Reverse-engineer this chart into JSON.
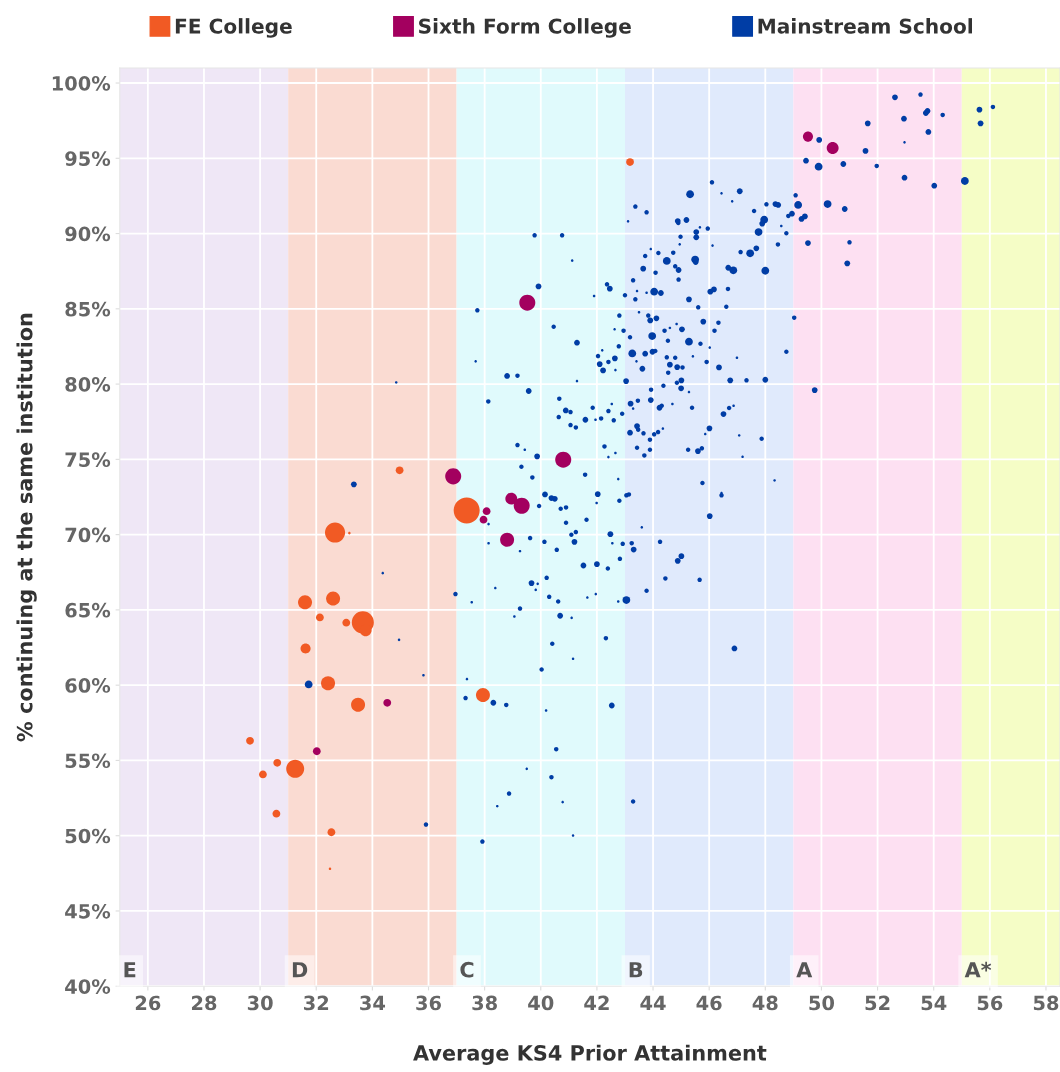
{
  "chart_data": {
    "type": "bubble",
    "xlabel": "Average KS4 Prior Attainment",
    "ylabel": "% continuing at the same institution",
    "xlim": [
      25,
      58.5
    ],
    "xticks": [
      26,
      28,
      30,
      32,
      34,
      36,
      38,
      40,
      42,
      44,
      46,
      48,
      50,
      52,
      54,
      56,
      58
    ],
    "ylim": [
      40,
      101
    ],
    "yticks": [
      {
        "value": 40,
        "label": "40%"
      },
      {
        "value": 45,
        "label": "45%"
      },
      {
        "value": 50,
        "label": "50%"
      },
      {
        "value": 55,
        "label": "55%"
      },
      {
        "value": 60,
        "label": "60%"
      },
      {
        "value": 65,
        "label": "65%"
      },
      {
        "value": 70,
        "label": "70%"
      },
      {
        "value": 75,
        "label": "75%"
      },
      {
        "value": 80,
        "label": "80%"
      },
      {
        "value": 85,
        "label": "85%"
      },
      {
        "value": 90,
        "label": "90%"
      },
      {
        "value": 95,
        "label": "95%"
      },
      {
        "value": 100,
        "label": "100%"
      }
    ],
    "grid": true,
    "legend": "top",
    "marker": "circle",
    "bands": [
      {
        "axis": "x",
        "from": 25,
        "to": 31,
        "label": "E",
        "color": "#efe7f6"
      },
      {
        "axis": "x",
        "from": 31,
        "to": 37,
        "label": "D",
        "color": "#fadbd2"
      },
      {
        "axis": "x",
        "from": 37,
        "to": 43,
        "label": "C",
        "color": "#e0fafc"
      },
      {
        "axis": "x",
        "from": 43,
        "to": 49,
        "label": "B",
        "color": "#e0eafc"
      },
      {
        "axis": "x",
        "from": 49,
        "to": 55,
        "label": "A",
        "color": "#fde0f2"
      },
      {
        "axis": "x",
        "from": 55,
        "to": 58.5,
        "label": "A*",
        "color": "#f5fdc6"
      }
    ],
    "series": [
      {
        "name": "FE College",
        "color": "#f15a24",
        "x": [
          37.36,
          32.67,
          33.18,
          31.6,
          32.6,
          32.13,
          33.07,
          33.66,
          33.76,
          31.62,
          32.42,
          33.49,
          37.94,
          29.64,
          30.61,
          30.1,
          31.25,
          30.58,
          32.54,
          32.49,
          34.97,
          43.18
        ],
        "values": [
          71.6,
          70.14,
          70.1,
          65.5,
          65.75,
          64.5,
          64.15,
          64.17,
          63.64,
          62.44,
          60.13,
          58.7,
          59.34,
          56.3,
          54.84,
          54.07,
          54.44,
          51.46,
          50.23,
          47.8,
          74.27,
          94.75
        ],
        "sizes": [
          1.0,
          0.6,
          0.01,
          0.29,
          0.29,
          0.09,
          0.09,
          0.72,
          0.21,
          0.15,
          0.29,
          0.29,
          0.29,
          0.09,
          0.09,
          0.09,
          0.48,
          0.09,
          0.09,
          0.01,
          0.09,
          0.09
        ]
      },
      {
        "name": "Sixth Form College",
        "color": "#a3005f",
        "x": [
          39.52,
          40.8,
          36.88,
          38.95,
          39.32,
          38.07,
          37.96,
          38.8,
          34.53,
          32.02,
          49.52,
          50.4
        ],
        "values": [
          85.41,
          74.98,
          73.87,
          72.39,
          71.92,
          71.56,
          70.99,
          69.66,
          58.83,
          55.61,
          96.44,
          95.68
        ],
        "sizes": [
          0.38,
          0.38,
          0.38,
          0.21,
          0.38,
          0.09,
          0.09,
          0.29,
          0.09,
          0.09,
          0.15,
          0.21
        ]
      },
      {
        "name": "Mainstream School",
        "color": "#003da5",
        "x": [
          39.78,
          40.76,
          41.12,
          39.92,
          37.74,
          40.46,
          41.29,
          37.68,
          38.8,
          39.17,
          34.85,
          41.29,
          39.57,
          38.13,
          40.66,
          40.89,
          41.06,
          40.64,
          41.59,
          41.06,
          41.25,
          39.17,
          39.43,
          39.87,
          39.31,
          41.58,
          39.7,
          40.15,
          40.38,
          40.5,
          39.94,
          40.71,
          40.9,
          33.34,
          38.14,
          40.9,
          41.63,
          41.09,
          41.25,
          41.2,
          38.14,
          39.62,
          40.13,
          39.26,
          40.57,
          41.52,
          34.37,
          39.67,
          39.89,
          40.21,
          39.82,
          38.38,
          36.96,
          37.54,
          40.3,
          40.62,
          41.66,
          39.26,
          39.06,
          40.69,
          41.1,
          34.95,
          40.41,
          41.15,
          40.03,
          35.82,
          37.37,
          37.32,
          38.31,
          38.77,
          40.19,
          40.55,
          39.5,
          40.38,
          38.87,
          38.45,
          40.78,
          35.91,
          37.92,
          41.15,
          31.73,
          52.62,
          53.53,
          55.63,
          56.11,
          52.94,
          53.72,
          53.78,
          54.32,
          51.65,
          55.67,
          49.92,
          53.81,
          52.96,
          51.57,
          49.45,
          49.9,
          50.78,
          51.97,
          52.96,
          54.02,
          55.11,
          46.1,
          45.32,
          46.44,
          47.09,
          49.08,
          46.82,
          43.37,
          43.77,
          48.04,
          48.36,
          48.46,
          49.17,
          50.22,
          50.83,
          47.6,
          43.11,
          44.88,
          44.9,
          45.19,
          45.67,
          45.95,
          45.54,
          45.54,
          44.98,
          44.95,
          46.12,
          47.96,
          47.89,
          47.76,
          48.57,
          48.75,
          48.82,
          48.95,
          49.29,
          49.41,
          49.52,
          51.0,
          50.92,
          48.45,
          47.68,
          47.46,
          47.12,
          43.92,
          44.19,
          44.72,
          43.72,
          44.49,
          45.5,
          45.52,
          44.79,
          44.91,
          43.65,
          44.09,
          46.68,
          46.86,
          48.0,
          44.91,
          43.29,
          42.36,
          42.46,
          41.9,
          43.0,
          43.43,
          43.37,
          43.77,
          44.04,
          44.28,
          45.28,
          45.61,
          46.04,
          46.17,
          46.67,
          46.61,
          49.03,
          42.8,
          43.83,
          43.9,
          44.12,
          43.5,
          42.63,
          42.95,
          43.18,
          43.97,
          44.41,
          44.6,
          44.84,
          45.03,
          45.79,
          46.33,
          46.19,
          44.53,
          45.28,
          45.69,
          46.02,
          42.78,
          43.26,
          43.72,
          43.98,
          44.08,
          42.64,
          42.04,
          42.19,
          42.1,
          42.22,
          42.41,
          42.66,
          43.41,
          43.62,
          44.49,
          44.6,
          44.79,
          44.86,
          45.05,
          44.54,
          45.42,
          45.91,
          46.35,
          46.99,
          48.75,
          43.04,
          43.93,
          44.37,
          44.85,
          45.01,
          45.0,
          45.28,
          46.75,
          47.33,
          48.0,
          49.76,
          43.92,
          43.46,
          43.2,
          43.29,
          44.23,
          44.31,
          44.69,
          45.39,
          46.51,
          46.71,
          46.87,
          42.9,
          42.53,
          42.41,
          41.85,
          41.95,
          42.15,
          42.6,
          43.18,
          43.43,
          43.47,
          43.66,
          43.89,
          44.04,
          44.18,
          44.35,
          43.43,
          43.89,
          43.69,
          45.25,
          45.6,
          45.74,
          46.01,
          45.86,
          47.07,
          47.19,
          47.87,
          42.27,
          42.41,
          42.66,
          42.76,
          48.33,
          45.76,
          42.03,
          43.05,
          43.14,
          42.8,
          41.99,
          46.44,
          46.44,
          46.02,
          43.6,
          42.48,
          42.55,
          42.92,
          43.24,
          43.31,
          44.25,
          44.88,
          45.01,
          42.82,
          42.0,
          42.39,
          44.44,
          45.66,
          43.77,
          41.96,
          42.76,
          43.05,
          42.32,
          46.9,
          42.53,
          43.29
        ],
        "values": [
          89.88,
          89.88,
          88.2,
          86.49,
          84.9,
          83.81,
          82.75,
          81.51,
          80.54,
          80.56,
          80.11,
          80.2,
          79.54,
          78.85,
          79.03,
          78.25,
          78.14,
          77.81,
          77.63,
          77.28,
          77.12,
          75.95,
          75.64,
          75.2,
          74.51,
          73.98,
          73.8,
          72.67,
          72.43,
          72.38,
          71.9,
          71.72,
          71.81,
          73.34,
          70.7,
          70.79,
          70.99,
          69.99,
          70.17,
          69.52,
          69.43,
          69.77,
          69.52,
          68.9,
          68.99,
          67.95,
          67.44,
          66.78,
          66.73,
          67.13,
          66.33,
          66.45,
          66.05,
          65.51,
          65.87,
          65.56,
          65.82,
          65.09,
          64.56,
          64.61,
          64.47,
          63.01,
          62.75,
          61.75,
          61.04,
          60.66,
          60.4,
          59.14,
          58.83,
          58.69,
          58.32,
          55.75,
          54.44,
          53.89,
          52.8,
          51.96,
          52.23,
          50.74,
          49.61,
          50.01,
          60.05,
          99.05,
          99.23,
          98.23,
          98.41,
          97.63,
          98.01,
          98.14,
          97.88,
          97.32,
          97.32,
          96.22,
          96.75,
          96.06,
          95.49,
          94.84,
          94.44,
          94.62,
          94.49,
          93.71,
          93.18,
          93.49,
          93.4,
          92.61,
          92.67,
          92.81,
          92.54,
          92.14,
          91.79,
          91.41,
          91.94,
          91.96,
          91.9,
          91.9,
          91.96,
          91.63,
          91.5,
          90.81,
          90.83,
          90.7,
          90.9,
          90.41,
          90.33,
          90.1,
          89.75,
          89.79,
          89.28,
          89.2,
          90.92,
          90.66,
          90.1,
          90.5,
          90.02,
          91.17,
          91.32,
          90.97,
          91.14,
          89.37,
          89.42,
          88.02,
          89.28,
          89.02,
          88.69,
          88.77,
          88.97,
          88.71,
          88.73,
          88.51,
          88.18,
          88.27,
          88.11,
          87.82,
          87.58,
          87.67,
          87.4,
          87.73,
          87.56,
          87.53,
          86.94,
          86.89,
          86.63,
          86.34,
          85.85,
          85.9,
          86.18,
          85.63,
          86.07,
          86.14,
          86.05,
          85.63,
          85.1,
          86.14,
          86.29,
          86.32,
          85.14,
          84.41,
          84.55,
          84.55,
          84.23,
          84.37,
          84.77,
          83.64,
          83.55,
          83.11,
          83.19,
          83.55,
          83.73,
          83.99,
          83.64,
          84.15,
          84.08,
          83.55,
          82.88,
          82.82,
          82.68,
          82.42,
          82.51,
          82.04,
          82.02,
          82.15,
          82.2,
          81.71,
          81.86,
          82.24,
          81.33,
          80.91,
          81.47,
          80.93,
          81.51,
          81.02,
          81.78,
          81.29,
          81.75,
          81.13,
          81.11,
          80.76,
          81.84,
          81.47,
          81.11,
          81.75,
          82.15,
          80.2,
          79.63,
          79.89,
          80.09,
          80.25,
          79.72,
          79.47,
          80.25,
          80.25,
          80.29,
          79.6,
          78.94,
          78.9,
          78.7,
          78.37,
          78.43,
          78.56,
          78.68,
          78.43,
          78.01,
          78.41,
          78.56,
          78.03,
          78.68,
          78.21,
          78.43,
          77.63,
          77.72,
          77.59,
          76.77,
          77.21,
          76.97,
          76.73,
          76.31,
          76.66,
          76.81,
          77.04,
          75.77,
          75.64,
          75.26,
          75.64,
          75.55,
          75.73,
          77.06,
          76.68,
          76.59,
          75.17,
          76.37,
          75.86,
          75.15,
          75.42,
          73.69,
          73.6,
          73.43,
          72.69,
          72.61,
          72.67,
          72.25,
          72.1,
          72.76,
          72.61,
          71.23,
          70.48,
          70.03,
          69.43,
          69.39,
          69.43,
          69.01,
          69.52,
          68.26,
          68.57,
          68.39,
          68.04,
          67.75,
          67.09,
          67.0,
          66.27,
          66.05,
          65.56,
          65.65,
          63.12,
          62.44,
          58.65,
          52.27
        ],
        "sizes": [
          0.03,
          0.03,
          0.01,
          0.05,
          0.03,
          0.03,
          0.05,
          0.01,
          0.05,
          0.03,
          0.01,
          0.01,
          0.05,
          0.03,
          0.03,
          0.05,
          0.03,
          0.03,
          0.05,
          0.03,
          0.03,
          0.03,
          0.01,
          0.05,
          0.03,
          0.03,
          0.03,
          0.05,
          0.05,
          0.05,
          0.03,
          0.03,
          0.03,
          0.05,
          0.01,
          0.03,
          0.03,
          0.03,
          0.03,
          0.05,
          0.01,
          0.03,
          0.03,
          0.01,
          0.03,
          0.05,
          0.01,
          0.05,
          0.01,
          0.03,
          0.01,
          0.01,
          0.03,
          0.01,
          0.03,
          0.03,
          0.01,
          0.03,
          0.01,
          0.05,
          0.01,
          0.01,
          0.03,
          0.01,
          0.03,
          0.01,
          0.01,
          0.03,
          0.05,
          0.03,
          0.01,
          0.03,
          0.01,
          0.03,
          0.03,
          0.01,
          0.01,
          0.03,
          0.03,
          0.01,
          0.09,
          0.05,
          0.03,
          0.05,
          0.03,
          0.05,
          0.05,
          0.05,
          0.03,
          0.05,
          0.05,
          0.05,
          0.05,
          0.01,
          0.05,
          0.05,
          0.09,
          0.05,
          0.03,
          0.05,
          0.05,
          0.09,
          0.03,
          0.09,
          0.01,
          0.05,
          0.03,
          0.01,
          0.03,
          0.03,
          0.03,
          0.05,
          0.05,
          0.09,
          0.09,
          0.05,
          0.03,
          0.01,
          0.05,
          0.03,
          0.05,
          0.01,
          0.03,
          0.05,
          0.05,
          0.03,
          0.01,
          0.01,
          0.09,
          0.05,
          0.09,
          0.01,
          0.03,
          0.03,
          0.05,
          0.05,
          0.05,
          0.05,
          0.03,
          0.05,
          0.03,
          0.05,
          0.09,
          0.03,
          0.01,
          0.03,
          0.03,
          0.03,
          0.09,
          0.09,
          0.05,
          0.03,
          0.05,
          0.05,
          0.03,
          0.05,
          0.09,
          0.09,
          0.03,
          0.03,
          0.03,
          0.05,
          0.01,
          0.03,
          0.01,
          0.03,
          0.01,
          0.09,
          0.05,
          0.05,
          0.03,
          0.05,
          0.05,
          0.03,
          0.03,
          0.03,
          0.03,
          0.03,
          0.05,
          0.05,
          0.01,
          0.01,
          0.03,
          0.03,
          0.09,
          0.03,
          0.01,
          0.01,
          0.05,
          0.05,
          0.03,
          0.03,
          0.03,
          0.09,
          0.03,
          0.01,
          0.03,
          0.09,
          0.05,
          0.05,
          0.03,
          0.05,
          0.03,
          0.01,
          0.05,
          0.05,
          0.03,
          0.01,
          0.01,
          0.05,
          0.03,
          0.05,
          0.03,
          0.05,
          0.03,
          0.03,
          0.01,
          0.03,
          0.05,
          0.01,
          0.03,
          0.05,
          0.03,
          0.03,
          0.03,
          0.05,
          0.05,
          0.01,
          0.05,
          0.03,
          0.05,
          0.05,
          0.05,
          0.03,
          0.05,
          0.01,
          0.05,
          0.03,
          0.01,
          0.03,
          0.05,
          0.03,
          0.01,
          0.03,
          0.01,
          0.03,
          0.03,
          0.01,
          0.03,
          0.03,
          0.05,
          0.05,
          0.03,
          0.03,
          0.03,
          0.03,
          0.03,
          0.01,
          0.03,
          0.03,
          0.03,
          0.03,
          0.05,
          0.03,
          0.05,
          0.01,
          0.01,
          0.01,
          0.03,
          0.03,
          0.01,
          0.01,
          0.01,
          0.01,
          0.03,
          0.05,
          0.03,
          0.03,
          0.03,
          0.01,
          0.01,
          0.03,
          0.05,
          0.01,
          0.05,
          0.01,
          0.03,
          0.03,
          0.05,
          0.03,
          0.05,
          0.05,
          0.03,
          0.05,
          0.03,
          0.03,
          0.03,
          0.03,
          0.01,
          0.01,
          0.09,
          0.03,
          0.05,
          0.05,
          0.03
        ]
      }
    ]
  }
}
